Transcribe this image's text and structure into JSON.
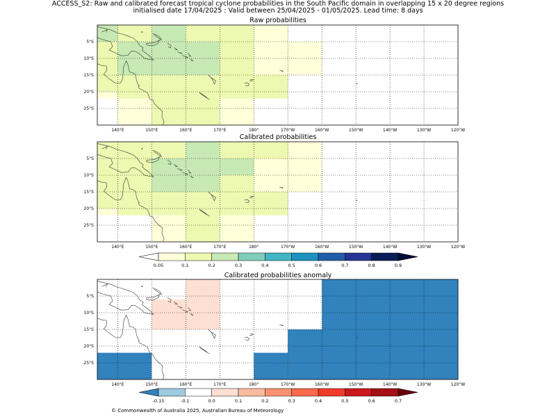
{
  "header": {
    "line1": "ACCESS_S2: Raw and calibrated forecast tropical cyclone probabilities in the South Pacific domain in overlapping 15 x 20 degree regions",
    "line2": "initialised date 17/04/2025 :  Valid between 25/04/2025 - 01/05/2025. Lead time: 8 days"
  },
  "map_axes": {
    "lon_range": [
      134,
      240
    ],
    "lat_range": [
      -30,
      0
    ],
    "x_tick_labels": [
      {
        "lon": 140,
        "label": "140°E"
      },
      {
        "lon": 150,
        "label": "150°E"
      },
      {
        "lon": 160,
        "label": "160°E"
      },
      {
        "lon": 170,
        "label": "170°E"
      },
      {
        "lon": 180,
        "label": "180°"
      },
      {
        "lon": 190,
        "label": "170°W"
      },
      {
        "lon": 200,
        "label": "160°W"
      },
      {
        "lon": 210,
        "label": "150°W"
      },
      {
        "lon": 220,
        "label": "140°W"
      },
      {
        "lon": 230,
        "label": "130°W"
      },
      {
        "lon": 240,
        "label": "120°W"
      }
    ],
    "y_tick_labels": [
      {
        "lat": -5,
        "label": "5°S"
      },
      {
        "lat": -10,
        "label": "10°S"
      },
      {
        "lat": -15,
        "label": "15°S"
      },
      {
        "lat": -20,
        "label": "20°S"
      },
      {
        "lat": -25,
        "label": "25°S"
      }
    ]
  },
  "panels": [
    {
      "title": "Raw probabilities",
      "scale": "prob",
      "cells": [
        {
          "lon": [
            134,
            140
          ],
          "lat": [
            -5,
            0
          ],
          "value": 0.2
        },
        {
          "lon": [
            140,
            150
          ],
          "lat": [
            -5,
            0
          ],
          "value": 0.15
        },
        {
          "lon": [
            150,
            160
          ],
          "lat": [
            -5,
            0
          ],
          "value": 0.25
        },
        {
          "lon": [
            160,
            180
          ],
          "lat": [
            -5,
            0
          ],
          "value": 0.15
        },
        {
          "lon": [
            180,
            190
          ],
          "lat": [
            -5,
            0
          ],
          "value": 0.08
        },
        {
          "lon": [
            134,
            140
          ],
          "lat": [
            -10,
            -5
          ],
          "value": 0.15
        },
        {
          "lon": [
            140,
            170
          ],
          "lat": [
            -15,
            -5
          ],
          "value": 0.25
        },
        {
          "lon": [
            170,
            180
          ],
          "lat": [
            -10,
            -5
          ],
          "value": 0.15
        },
        {
          "lon": [
            180,
            200
          ],
          "lat": [
            -10,
            -5
          ],
          "value": 0.08
        },
        {
          "lon": [
            134,
            140
          ],
          "lat": [
            -20,
            -10
          ],
          "value": 0.15
        },
        {
          "lon": [
            170,
            180
          ],
          "lat": [
            -15,
            -10
          ],
          "value": 0.15
        },
        {
          "lon": [
            180,
            200
          ],
          "lat": [
            -15,
            -10
          ],
          "value": 0.08
        },
        {
          "lon": [
            140,
            170
          ],
          "lat": [
            -20,
            -15
          ],
          "value": 0.15
        },
        {
          "lon": [
            170,
            190
          ],
          "lat": [
            -20,
            -15
          ],
          "value": 0.15
        },
        {
          "lon": [
            134,
            140
          ],
          "lat": [
            -22,
            -20
          ],
          "value": 0.08
        },
        {
          "lon": [
            140,
            150
          ],
          "lat": [
            -22,
            -20
          ],
          "value": 0.15
        },
        {
          "lon": [
            150,
            170
          ],
          "lat": [
            -22,
            -20
          ],
          "value": 0.15
        },
        {
          "lon": [
            170,
            190
          ],
          "lat": [
            -22,
            -20
          ],
          "value": 0.15
        },
        {
          "lon": [
            140,
            150
          ],
          "lat": [
            -30,
            -22
          ],
          "value": 0.08
        },
        {
          "lon": [
            150,
            170
          ],
          "lat": [
            -30,
            -22
          ],
          "value": 0.15
        },
        {
          "lon": [
            170,
            180
          ],
          "lat": [
            -30,
            -22
          ],
          "value": 0.08
        }
      ]
    },
    {
      "title": "Calibrated probabilities",
      "scale": "prob",
      "cells": [
        {
          "lon": [
            134,
            160
          ],
          "lat": [
            -5,
            0
          ],
          "value": 0.15
        },
        {
          "lon": [
            160,
            170
          ],
          "lat": [
            -5,
            0
          ],
          "value": 0.25
        },
        {
          "lon": [
            170,
            190
          ],
          "lat": [
            -5,
            0
          ],
          "value": 0.15
        },
        {
          "lon": [
            190,
            200
          ],
          "lat": [
            -5,
            0
          ],
          "value": 0.08
        },
        {
          "lon": [
            134,
            150
          ],
          "lat": [
            -10,
            -5
          ],
          "value": 0.15
        },
        {
          "lon": [
            150,
            170
          ],
          "lat": [
            -15,
            -5
          ],
          "value": 0.25
        },
        {
          "lon": [
            170,
            180
          ],
          "lat": [
            -10,
            -5
          ],
          "value": 0.25
        },
        {
          "lon": [
            180,
            200
          ],
          "lat": [
            -10,
            -5
          ],
          "value": 0.08
        },
        {
          "lon": [
            134,
            150
          ],
          "lat": [
            -20,
            -10
          ],
          "value": 0.15
        },
        {
          "lon": [
            170,
            180
          ],
          "lat": [
            -15,
            -10
          ],
          "value": 0.15
        },
        {
          "lon": [
            180,
            200
          ],
          "lat": [
            -15,
            -10
          ],
          "value": 0.08
        },
        {
          "lon": [
            150,
            170
          ],
          "lat": [
            -20,
            -15
          ],
          "value": 0.15
        },
        {
          "lon": [
            170,
            190
          ],
          "lat": [
            -20,
            -15
          ],
          "value": 0.15
        },
        {
          "lon": [
            134,
            140
          ],
          "lat": [
            -22,
            -20
          ],
          "value": 0.08
        },
        {
          "lon": [
            140,
            190
          ],
          "lat": [
            -22,
            -20
          ],
          "value": 0.15
        },
        {
          "lon": [
            150,
            160
          ],
          "lat": [
            -30,
            -22
          ],
          "value": 0.08
        },
        {
          "lon": [
            160,
            170
          ],
          "lat": [
            -30,
            -22
          ],
          "value": 0.15
        },
        {
          "lon": [
            170,
            180
          ],
          "lat": [
            -30,
            -22
          ],
          "value": 0.08
        }
      ]
    },
    {
      "title": "Calibrated probabilities anomaly",
      "scale": "anom",
      "cells": [
        {
          "lon": [
            160,
            170
          ],
          "lat": [
            -6,
            0
          ],
          "value": 0.05
        },
        {
          "lon": [
            150,
            170
          ],
          "lat": [
            -15,
            -6
          ],
          "value": 0.05
        },
        {
          "lon": [
            190,
            200
          ],
          "lat": [
            -6,
            0
          ],
          "value": -0.1
        },
        {
          "lon": [
            200,
            240
          ],
          "lat": [
            -15,
            0
          ],
          "value": -0.2
        },
        {
          "lon": [
            180,
            200
          ],
          "lat": [
            -15,
            -6
          ],
          "value": -0.1
        },
        {
          "lon": [
            134,
            140
          ],
          "lat": [
            -22,
            -15
          ],
          "value": -0.1
        },
        {
          "lon": [
            180,
            190
          ],
          "lat": [
            -22,
            -15
          ],
          "value": -0.1
        },
        {
          "lon": [
            190,
            240
          ],
          "lat": [
            -30,
            -15
          ],
          "value": -0.2
        },
        {
          "lon": [
            134,
            150
          ],
          "lat": [
            -30,
            -22
          ],
          "value": -0.2
        },
        {
          "lon": [
            150,
            160
          ],
          "lat": [
            -30,
            -22
          ],
          "value": -0.1
        },
        {
          "lon": [
            170,
            180
          ],
          "lat": [
            -30,
            -22
          ],
          "value": -0.1
        },
        {
          "lon": [
            180,
            190
          ],
          "lat": [
            -30,
            -22
          ],
          "value": -0.2
        }
      ]
    }
  ],
  "colorbars": {
    "prob": {
      "bounds": [
        0.05,
        0.1,
        0.2,
        0.3,
        0.4,
        0.5,
        0.6,
        0.7,
        0.8,
        0.9
      ],
      "labels": [
        "0.05",
        "0.1",
        "0.2",
        "0.3",
        "0.4",
        "0.5",
        "0.6",
        "0.7",
        "0.8",
        "0.9"
      ],
      "under_color": "#ffffff",
      "colors": [
        "#ffffd9",
        "#edf8b1",
        "#c7e9b4",
        "#7fcdbb",
        "#41b6c4",
        "#1d91c0",
        "#225ea8",
        "#253494",
        "#081d58"
      ],
      "over_color": "#040c3a"
    },
    "anom": {
      "bounds": [
        -0.15,
        -0.1,
        0.0,
        0.1,
        0.2,
        0.3,
        0.4,
        0.5,
        0.6,
        0.7
      ],
      "labels": [
        "-0.15",
        "-0.1",
        "0.0",
        "0.1",
        "0.2",
        "0.3",
        "0.4",
        "0.5",
        "0.6",
        "0.7"
      ],
      "under_color": "#3182bd",
      "colors": [
        "#9ecae1",
        "#ffffff",
        "#fee0d2",
        "#fcbba1",
        "#fc9272",
        "#fb6a4a",
        "#ef3b2c",
        "#cb181d",
        "#a50f15"
      ],
      "over_color": "#67000d"
    }
  },
  "footer": "© Commonwealth of Australia 2025, Australian Bureau of Meteorology"
}
